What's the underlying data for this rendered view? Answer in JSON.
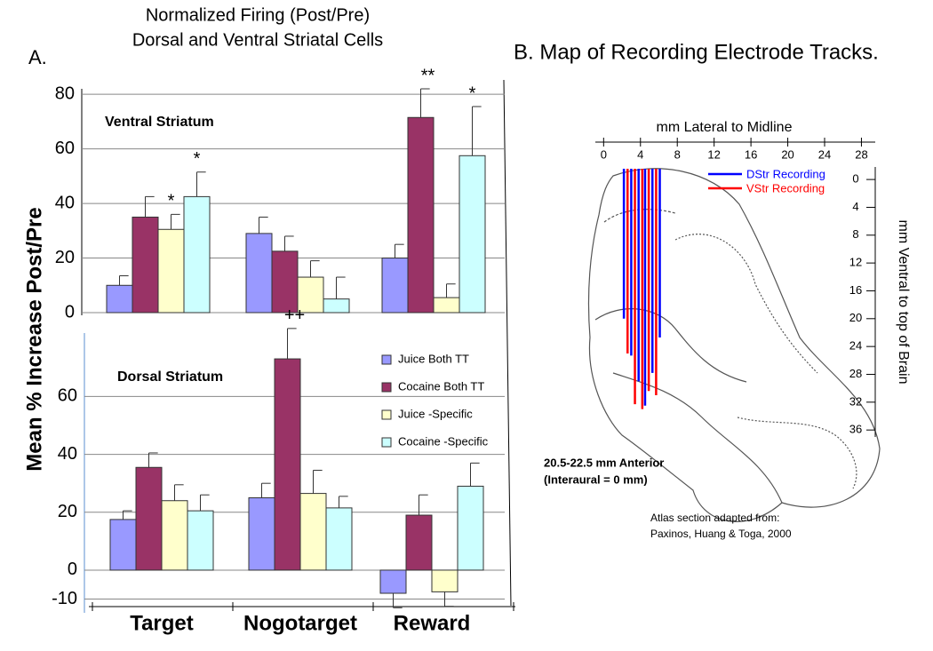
{
  "title": "Normalized Firing (Post/Pre)",
  "subtitle": "Dorsal and Ventral Striatal Cells",
  "panel_label": "A.",
  "y_label": "Mean % Increase Post/Pre",
  "chart_data": [
    {
      "type": "bar",
      "title": "Ventral Striatum",
      "categories": [
        null,
        null,
        null
      ],
      "ylim": [
        -2.6,
        82
      ],
      "yticks": [
        0,
        20,
        40,
        60,
        80
      ],
      "grid": true,
      "series": [
        {
          "color": "#9999ff",
          "values": [
            10,
            29,
            20
          ],
          "errors": [
            3.5,
            6,
            5
          ]
        },
        {
          "color": "#993366",
          "values": [
            35,
            22.5,
            71.5
          ],
          "errors": [
            7.5,
            5.5,
            10.5
          ]
        },
        {
          "color": "#ffffcc",
          "values": [
            30.5,
            13,
            5.5
          ],
          "errors": [
            5.5,
            6,
            5
          ]
        },
        {
          "color": "#ccffff",
          "values": [
            42.5,
            5,
            57.5
          ],
          "errors": [
            9,
            8,
            18
          ]
        }
      ],
      "annotations": [
        {
          "text": "*",
          "series": 2,
          "category": 0
        },
        {
          "text": "*",
          "series": 3,
          "category": 0
        },
        {
          "text": "**",
          "series": 1,
          "category": 2
        },
        {
          "text": "*",
          "series": 3,
          "category": 2
        }
      ]
    },
    {
      "type": "bar",
      "title": "Dorsal Striatum",
      "categories": [
        "Target",
        "Nogotarget",
        "Reward"
      ],
      "ylim": [
        -12.6,
        81
      ],
      "yticks": [
        -10,
        0,
        20,
        40,
        60
      ],
      "grid": true,
      "legend": "upper right",
      "series": [
        {
          "name": "Juice Both TT",
          "color": "#9999ff",
          "values": [
            17.5,
            25,
            -8
          ],
          "errors": [
            3,
            5,
            5
          ]
        },
        {
          "name": "Cocaine Both TT",
          "color": "#993366",
          "values": [
            35.5,
            73,
            19
          ],
          "errors": [
            5,
            10.5,
            7
          ]
        },
        {
          "name": "Juice -Specific",
          "color": "#ffffcc",
          "values": [
            24,
            26.5,
            -7.5
          ],
          "errors": [
            5.5,
            8,
            5
          ]
        },
        {
          "name": "Cocaine -Specific",
          "color": "#ccffff",
          "values": [
            20.5,
            21.5,
            29
          ],
          "errors": [
            5.5,
            4,
            8
          ]
        }
      ],
      "annotations": [
        {
          "text": "++",
          "series": 1,
          "category": 1
        }
      ]
    },
    {
      "type": "tracks",
      "title": "B. Map of Recording Electrode Tracks.",
      "xlabel": "mm Lateral to Midline",
      "ylabel": "mm Ventral to top of Brain",
      "xlim": [
        -0.9,
        29.5
      ],
      "xticks": [
        0,
        4,
        8,
        12,
        16,
        20,
        24,
        28
      ],
      "ylim": [
        -1.8,
        37
      ],
      "yticks": [
        0,
        4,
        8,
        12,
        16,
        20,
        24,
        28,
        32,
        36
      ],
      "series": [
        {
          "name": "DStr Recording",
          "color": "#0000ff",
          "x": [
            2.2,
            3.0,
            3.8,
            4.5,
            5.3,
            6.1
          ],
          "y": [
            20,
            25.3,
            29,
            32.5,
            27.8,
            22.7
          ]
        },
        {
          "name": "VStr Recording",
          "color": "#ff0000",
          "x": [
            2.6,
            3.4,
            4.2,
            4.9,
            5.7
          ],
          "y": [
            25,
            32.3,
            33,
            30.4,
            31
          ]
        }
      ],
      "notes": [
        "20.5-22.5 mm Anterior",
        "(Interaural = 0 mm)"
      ],
      "source": [
        "Atlas section adapted from:",
        "Paxinos, Huang & Toga, 2000"
      ]
    }
  ]
}
